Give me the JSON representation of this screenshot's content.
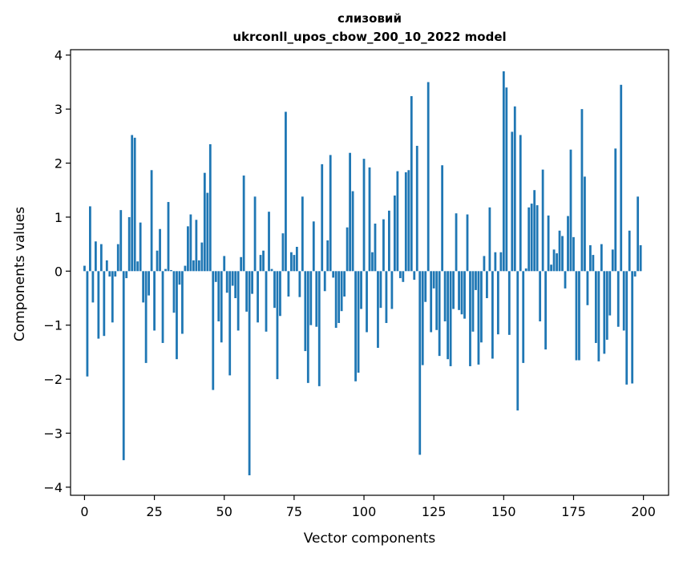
{
  "chart_data": {
    "type": "bar",
    "title_line1": "слизовий",
    "title_line2": "ukrconll_upos_cbow_200_10_2022 model",
    "xlabel": "Vector components",
    "ylabel": "Components values",
    "xlim": [
      -5,
      209
    ],
    "ylim": [
      -4.15,
      4.1
    ],
    "xticks": [
      0,
      25,
      50,
      75,
      100,
      125,
      150,
      175,
      200
    ],
    "yticks": [
      -4,
      -3,
      -2,
      -1,
      0,
      1,
      2,
      3,
      4
    ],
    "bar_color": "#1f77b4",
    "grid": false,
    "legend": "none",
    "x": [
      0,
      1,
      2,
      3,
      4,
      5,
      6,
      7,
      8,
      9,
      10,
      11,
      12,
      13,
      14,
      15,
      16,
      17,
      18,
      19,
      20,
      21,
      22,
      23,
      24,
      25,
      26,
      27,
      28,
      29,
      30,
      31,
      32,
      33,
      34,
      35,
      36,
      37,
      38,
      39,
      40,
      41,
      42,
      43,
      44,
      45,
      46,
      47,
      48,
      49,
      50,
      51,
      52,
      53,
      54,
      55,
      56,
      57,
      58,
      59,
      60,
      61,
      62,
      63,
      64,
      65,
      66,
      67,
      68,
      69,
      70,
      71,
      72,
      73,
      74,
      75,
      76,
      77,
      78,
      79,
      80,
      81,
      82,
      83,
      84,
      85,
      86,
      87,
      88,
      89,
      90,
      91,
      92,
      93,
      94,
      95,
      96,
      97,
      98,
      99,
      100,
      101,
      102,
      103,
      104,
      105,
      106,
      107,
      108,
      109,
      110,
      111,
      112,
      113,
      114,
      115,
      116,
      117,
      118,
      119,
      120,
      121,
      122,
      123,
      124,
      125,
      126,
      127,
      128,
      129,
      130,
      131,
      132,
      133,
      134,
      135,
      136,
      137,
      138,
      139,
      140,
      141,
      142,
      143,
      144,
      145,
      146,
      147,
      148,
      149,
      150,
      151,
      152,
      153,
      154,
      155,
      156,
      157,
      158,
      159,
      160,
      161,
      162,
      163,
      164,
      165,
      166,
      167,
      168,
      169,
      170,
      171,
      172,
      173,
      174,
      175,
      176,
      177,
      178,
      179,
      180,
      181,
      182,
      183,
      184,
      185,
      186,
      187,
      188,
      189,
      190,
      191,
      192,
      193,
      194,
      195,
      196,
      197,
      198,
      199
    ],
    "values": [
      0.1,
      -1.95,
      1.2,
      -0.58,
      0.55,
      -1.25,
      0.5,
      -1.2,
      0.2,
      -0.1,
      -0.95,
      -0.1,
      0.5,
      1.13,
      -3.5,
      -0.13,
      1.0,
      2.52,
      2.47,
      0.18,
      0.9,
      -0.58,
      -1.7,
      -0.45,
      1.87,
      -1.1,
      0.38,
      0.78,
      -1.33,
      0.04,
      1.28,
      0.02,
      -0.77,
      -1.63,
      -0.25,
      -1.16,
      0.1,
      0.83,
      1.05,
      0.2,
      0.95,
      0.2,
      0.53,
      1.82,
      1.45,
      2.35,
      -2.2,
      -0.2,
      -0.93,
      -1.32,
      0.28,
      -0.4,
      -1.93,
      -0.27,
      -0.5,
      -1.1,
      0.26,
      1.77,
      -0.75,
      -3.78,
      -0.42,
      1.38,
      -0.95,
      0.3,
      0.38,
      -1.12,
      1.1,
      0.04,
      -0.68,
      -2.0,
      -0.83,
      0.7,
      2.95,
      -0.47,
      0.35,
      0.3,
      0.45,
      -0.48,
      1.38,
      -1.48,
      -2.07,
      -1.0,
      0.92,
      -1.03,
      -2.13,
      1.98,
      -0.37,
      0.57,
      2.15,
      -0.12,
      -1.05,
      -0.96,
      -0.74,
      -0.47,
      0.81,
      2.19,
      1.48,
      -2.04,
      -1.88,
      -0.7,
      2.08,
      -1.13,
      1.92,
      0.35,
      0.88,
      -1.42,
      -0.68,
      0.96,
      -0.96,
      1.12,
      -0.7,
      1.4,
      1.85,
      -0.13,
      -0.2,
      1.83,
      1.87,
      3.24,
      -0.16,
      2.32,
      -3.4,
      -1.74,
      -0.57,
      3.5,
      -1.13,
      -0.32,
      -1.09,
      -1.57,
      1.96,
      -0.93,
      -1.63,
      -1.76,
      -0.7,
      1.07,
      -0.72,
      -0.8,
      -0.88,
      1.05,
      -1.76,
      -1.12,
      -0.35,
      -1.73,
      -1.32,
      0.28,
      -0.5,
      1.18,
      -1.62,
      0.35,
      -1.17,
      0.35,
      3.7,
      3.4,
      -1.18,
      2.58,
      3.05,
      -2.58,
      2.52,
      -1.7,
      0.05,
      1.18,
      1.25,
      1.5,
      1.22,
      -0.93,
      1.88,
      -1.45,
      1.03,
      0.12,
      0.4,
      0.33,
      0.75,
      0.65,
      -0.32,
      1.02,
      2.25,
      0.63,
      -1.65,
      -1.65,
      3.0,
      1.75,
      -0.63,
      0.48,
      0.3,
      -1.33,
      -1.67,
      0.5,
      -1.53,
      -1.27,
      -0.82,
      0.4,
      2.27,
      -1.03,
      3.45,
      -1.1,
      -2.1,
      0.75,
      -2.08,
      -0.1,
      1.38,
      0.48
    ]
  }
}
